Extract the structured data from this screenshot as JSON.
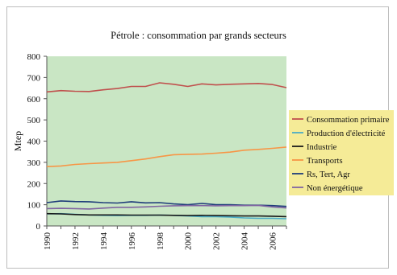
{
  "chart_data": {
    "type": "line",
    "title": "Pétrole : consommation par grands secteurs",
    "xlabel": "",
    "ylabel": "Mtep",
    "ylim": [
      0,
      800
    ],
    "yticks": [
      0,
      100,
      200,
      300,
      400,
      500,
      600,
      700,
      800
    ],
    "xlim": [
      1990,
      2007
    ],
    "xticks": [
      1990,
      1992,
      1994,
      1996,
      1998,
      2000,
      2002,
      2004,
      2006
    ],
    "grid": false,
    "legend_position": "right",
    "plot_background": "#c9e6c4",
    "legend_background": "#f5eb97",
    "x": [
      1990,
      1991,
      1992,
      1993,
      1994,
      1995,
      1996,
      1997,
      1998,
      1999,
      2000,
      2001,
      2002,
      2003,
      2004,
      2005,
      2006,
      2007
    ],
    "series": [
      {
        "name": "Consommation primaire",
        "color": "#c0504d",
        "values": [
          632,
          638,
          635,
          634,
          642,
          648,
          658,
          658,
          675,
          668,
          658,
          670,
          665,
          668,
          670,
          672,
          667,
          652
        ]
      },
      {
        "name": "Production d'électricité",
        "color": "#4bacc6",
        "values": [
          57,
          58,
          55,
          52,
          50,
          49,
          50,
          50,
          51,
          50,
          47,
          44,
          44,
          42,
          38,
          36,
          36,
          34
        ]
      },
      {
        "name": "Industrie",
        "color": "#1a1a1a",
        "values": [
          58,
          57,
          54,
          52,
          52,
          52,
          51,
          51,
          51,
          50,
          49,
          50,
          49,
          48,
          47,
          47,
          46,
          44
        ]
      },
      {
        "name": "Transports",
        "color": "#f79646",
        "values": [
          280,
          283,
          290,
          294,
          297,
          300,
          308,
          316,
          327,
          336,
          338,
          339,
          343,
          348,
          357,
          361,
          366,
          372
        ]
      },
      {
        "name": "Rs, Tert, Agr",
        "color": "#1f3d7a",
        "values": [
          110,
          118,
          115,
          114,
          110,
          108,
          114,
          109,
          110,
          104,
          100,
          106,
          100,
          100,
          98,
          98,
          96,
          92
        ]
      },
      {
        "name": "Non énergétique",
        "color": "#8064a2",
        "values": [
          82,
          83,
          82,
          80,
          84,
          88,
          88,
          90,
          93,
          95,
          96,
          96,
          95,
          96,
          96,
          97,
          90,
          85
        ]
      }
    ]
  }
}
